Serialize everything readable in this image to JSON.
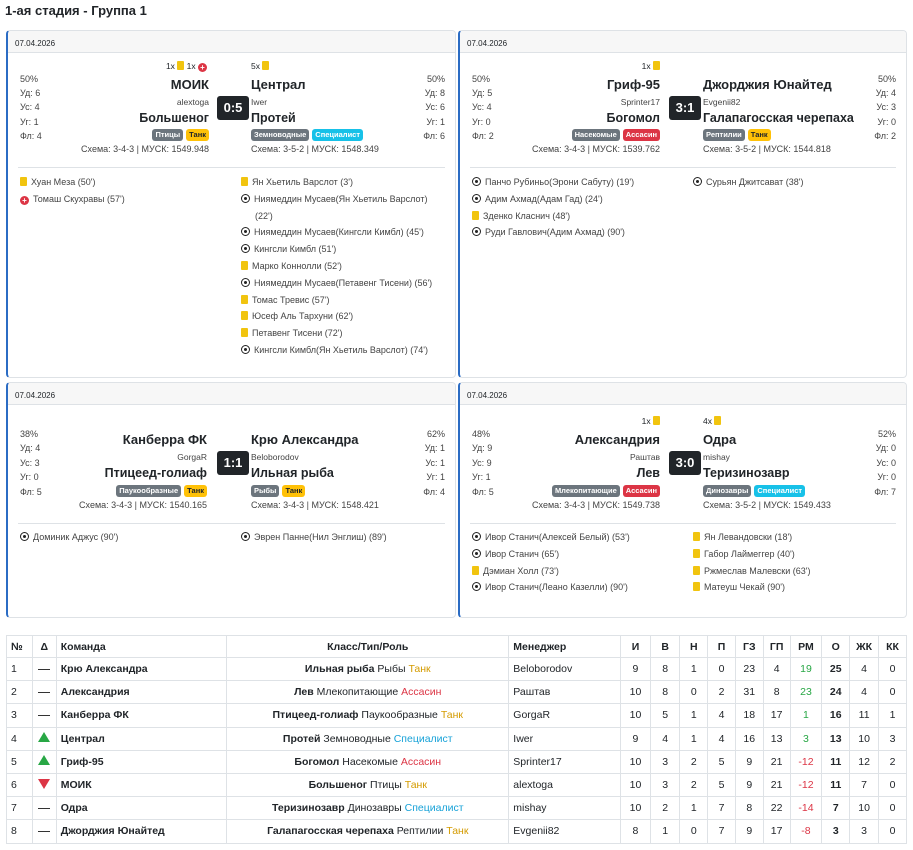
{
  "stage_title": "1-ая стадия - Группа 1",
  "colors": {
    "accent": "#2b6cc4",
    "tank_bg": "#ffc107",
    "specialist_bg": "#17c1e8",
    "assassin_bg": "#dc3545",
    "class_bg": "#6c757d",
    "tank_text": "#d49b00",
    "specialist_text": "#17a2d8",
    "assassin_text": "#dc3545"
  },
  "matches": [
    {
      "date": "07.04.2026",
      "score": "0:5",
      "home": {
        "name": "МОИК",
        "manager": "alextoga",
        "animal": "Большеног",
        "class": "Птицы",
        "role": "Танк",
        "scheme": "Схема: 3-4-3 | МУСК: 1549.948",
        "possession": "50%",
        "shots": "Уд: 6",
        "on_target": "Ус: 4",
        "corners": "Уг: 1",
        "fouls": "Фл: 4",
        "cards_top": "1x 1x"
      },
      "away": {
        "name": "Централ",
        "manager": "Iwer",
        "animal": "Протей",
        "class": "Земноводные",
        "role": "Специалист",
        "scheme": "Схема: 3-5-2 | МУСК: 1548.349",
        "possession": "50%",
        "shots": "Уд: 8",
        "on_target": "Ус: 6",
        "corners": "Уг: 1",
        "fouls": "Фл: 6",
        "cards_top": "5x"
      },
      "home_events": [
        {
          "icon": "yellow-card",
          "text": "Хуан Меза (50')"
        },
        {
          "icon": "red-card",
          "text": "Томаш Скухравы (57')"
        }
      ],
      "away_events": [
        {
          "icon": "yellow-card",
          "text": "Ян Хьетиль Варслот (3')"
        },
        {
          "icon": "goal",
          "text": "Ниямеддин Мусаев(Ян Хьетиль Варслот)"
        },
        {
          "icon": "none",
          "text": "(22')"
        },
        {
          "icon": "goal",
          "text": "Ниямеддин Мусаев(Кингсли Кимбл) (45')"
        },
        {
          "icon": "goal",
          "text": "Кингсли Кимбл (51')"
        },
        {
          "icon": "yellow-card",
          "text": "Марко Коннолли (52')"
        },
        {
          "icon": "goal",
          "text": "Ниямеддин Мусаев(Петавенг Тисени) (56')"
        },
        {
          "icon": "yellow-card",
          "text": "Томас Тревис (57')"
        },
        {
          "icon": "yellow-card",
          "text": "Юсеф Аль Тархуни (62')"
        },
        {
          "icon": "yellow-card",
          "text": "Петавенг Тисени (72')"
        },
        {
          "icon": "goal",
          "text": "Кингсли Кимбл(Ян Хьетиль Варслот) (74')"
        }
      ]
    },
    {
      "date": "07.04.2026",
      "score": "3:1",
      "home": {
        "name": "Гриф-95",
        "manager": "Sprinter17",
        "animal": "Богомол",
        "class": "Насекомые",
        "role": "Ассасин",
        "scheme": "Схема: 3-4-3 | МУСК: 1539.762",
        "possession": "50%",
        "shots": "Уд: 5",
        "on_target": "Ус: 4",
        "corners": "Уг: 0",
        "fouls": "Фл: 2",
        "cards_top": "1x"
      },
      "away": {
        "name": "Джорджия Юнайтед",
        "manager": "Evgenii82",
        "animal": "Галапагосская черепаха",
        "class": "Рептилии",
        "role": "Танк",
        "scheme": "Схема: 3-5-2 | МУСК: 1544.818",
        "possession": "50%",
        "shots": "Уд: 4",
        "on_target": "Ус: 3",
        "corners": "Уг: 0",
        "fouls": "Фл: 2",
        "cards_top": ""
      },
      "home_events": [
        {
          "icon": "goal",
          "text": "Панчо Рубиньо(Эрони Сабуту) (19')"
        },
        {
          "icon": "goal",
          "text": "Адим Ахмад(Адам Гад) (24')"
        },
        {
          "icon": "yellow-card",
          "text": "Зденко Класнич (48')"
        },
        {
          "icon": "goal",
          "text": "Руди Гавлович(Адим Ахмад) (90')"
        }
      ],
      "away_events": [
        {
          "icon": "goal",
          "text": "Сурьян Джитсават (38')"
        }
      ]
    },
    {
      "date": "07.04.2026",
      "score": "1:1",
      "home": {
        "name": "Канберра ФК",
        "manager": "GorgaR",
        "animal": "Птицеед-голиаф",
        "class": "Паукообразные",
        "role": "Танк",
        "scheme": "Схема: 3-4-3 | МУСК: 1540.165",
        "possession": "38%",
        "shots": "Уд: 4",
        "on_target": "Ус: 3",
        "corners": "Уг: 0",
        "fouls": "Фл: 5",
        "cards_top": ""
      },
      "away": {
        "name": "Крю Александра",
        "manager": "Beloborodov",
        "animal": "Ильная рыба",
        "class": "Рыбы",
        "role": "Танк",
        "scheme": "Схема: 3-4-3 | МУСК: 1548.421",
        "possession": "62%",
        "shots": "Уд: 1",
        "on_target": "Ус: 1",
        "corners": "Уг: 1",
        "fouls": "Фл: 4",
        "cards_top": ""
      },
      "home_events": [
        {
          "icon": "goal",
          "text": "Доминик Аджус (90')"
        }
      ],
      "away_events": [
        {
          "icon": "goal",
          "text": "Эврен Панне(Нил Энглиш) (89')"
        }
      ]
    },
    {
      "date": "07.04.2026",
      "score": "3:0",
      "home": {
        "name": "Александрия",
        "manager": "Раштав",
        "animal": "Лев",
        "class": "Млекопитающие",
        "role": "Ассасин",
        "scheme": "Схема: 3-4-3 | МУСК: 1549.738",
        "possession": "48%",
        "shots": "Уд: 9",
        "on_target": "Ус: 9",
        "corners": "Уг: 1",
        "fouls": "Фл: 5",
        "cards_top": "1x"
      },
      "away": {
        "name": "Одра",
        "manager": "mishay",
        "animal": "Теризинозавр",
        "class": "Динозавры",
        "role": "Специалист",
        "scheme": "Схема: 3-5-2 | МУСК: 1549.433",
        "possession": "52%",
        "shots": "Уд: 0",
        "on_target": "Ус: 0",
        "corners": "Уг: 0",
        "fouls": "Фл: 7",
        "cards_top": "4x"
      },
      "home_events": [
        {
          "icon": "goal",
          "text": "Ивор Станич(Алексей Белый) (53')"
        },
        {
          "icon": "goal",
          "text": "Ивор Станич (65')"
        },
        {
          "icon": "yellow-card",
          "text": "Дэмиан Холл (73')"
        },
        {
          "icon": "goal",
          "text": "Ивор Станич(Леано Казелли) (90')"
        }
      ],
      "away_events": [
        {
          "icon": "yellow-card",
          "text": "Ян Левандовски (18')"
        },
        {
          "icon": "yellow-card",
          "text": "Габор Лаймеггер (40')"
        },
        {
          "icon": "yellow-card",
          "text": "Ржмеслав Малевски (63')"
        },
        {
          "icon": "yellow-card",
          "text": "Матеуш Чекай (90')"
        }
      ]
    }
  ],
  "standings": {
    "headers": [
      "№",
      "Δ",
      "Команда",
      "Класс/Тип/Роль",
      "Менеджер",
      "И",
      "В",
      "Н",
      "П",
      "ГЗ",
      "ГП",
      "РМ",
      "О",
      "ЖК",
      "КК"
    ],
    "rows": [
      {
        "n": "1",
        "delta": "same",
        "team": "Крю Александра",
        "animal": "Ильная рыба",
        "class": "Рыбы",
        "role": "Танк",
        "manager": "Beloborodov",
        "p": "9",
        "w": "8",
        "d": "1",
        "l": "0",
        "gf": "23",
        "ga": "4",
        "gd": "19",
        "gd_sign": "pos",
        "pts": "25",
        "yc": "4",
        "rc": "0"
      },
      {
        "n": "2",
        "delta": "same",
        "team": "Александрия",
        "animal": "Лев",
        "class": "Млекопитающие",
        "role": "Ассасин",
        "manager": "Раштав",
        "p": "10",
        "w": "8",
        "d": "0",
        "l": "2",
        "gf": "31",
        "ga": "8",
        "gd": "23",
        "gd_sign": "pos",
        "pts": "24",
        "yc": "4",
        "rc": "0"
      },
      {
        "n": "3",
        "delta": "same",
        "team": "Канберра ФК",
        "animal": "Птицеед-голиаф",
        "class": "Паукообразные",
        "role": "Танк",
        "manager": "GorgaR",
        "p": "10",
        "w": "5",
        "d": "1",
        "l": "4",
        "gf": "18",
        "ga": "17",
        "gd": "1",
        "gd_sign": "pos",
        "pts": "16",
        "yc": "11",
        "rc": "1"
      },
      {
        "n": "4",
        "delta": "up",
        "team": "Централ",
        "animal": "Протей",
        "class": "Земноводные",
        "role": "Специалист",
        "manager": "Iwer",
        "p": "9",
        "w": "4",
        "d": "1",
        "l": "4",
        "gf": "16",
        "ga": "13",
        "gd": "3",
        "gd_sign": "pos",
        "pts": "13",
        "yc": "10",
        "rc": "3"
      },
      {
        "n": "5",
        "delta": "up",
        "team": "Гриф-95",
        "animal": "Богомол",
        "class": "Насекомые",
        "role": "Ассасин",
        "manager": "Sprinter17",
        "p": "10",
        "w": "3",
        "d": "2",
        "l": "5",
        "gf": "9",
        "ga": "21",
        "gd": "-12",
        "gd_sign": "neg",
        "pts": "11",
        "yc": "12",
        "rc": "2"
      },
      {
        "n": "6",
        "delta": "down",
        "team": "МОИК",
        "animal": "Большеног",
        "class": "Птицы",
        "role": "Танк",
        "manager": "alextoga",
        "p": "10",
        "w": "3",
        "d": "2",
        "l": "5",
        "gf": "9",
        "ga": "21",
        "gd": "-12",
        "gd_sign": "neg",
        "pts": "11",
        "yc": "7",
        "rc": "0"
      },
      {
        "n": "7",
        "delta": "same",
        "team": "Одра",
        "animal": "Теризинозавр",
        "class": "Динозавры",
        "role": "Специалист",
        "manager": "mishay",
        "p": "10",
        "w": "2",
        "d": "1",
        "l": "7",
        "gf": "8",
        "ga": "22",
        "gd": "-14",
        "gd_sign": "neg",
        "pts": "7",
        "yc": "10",
        "rc": "0"
      },
      {
        "n": "8",
        "delta": "same",
        "team": "Джорджия Юнайтед",
        "animal": "Галапагосская черепаха",
        "class": "Рептилии",
        "role": "Танк",
        "manager": "Evgenii82",
        "p": "8",
        "w": "1",
        "d": "0",
        "l": "7",
        "gf": "9",
        "ga": "17",
        "gd": "-8",
        "gd_sign": "neg",
        "pts": "3",
        "yc": "3",
        "rc": "0"
      }
    ]
  }
}
